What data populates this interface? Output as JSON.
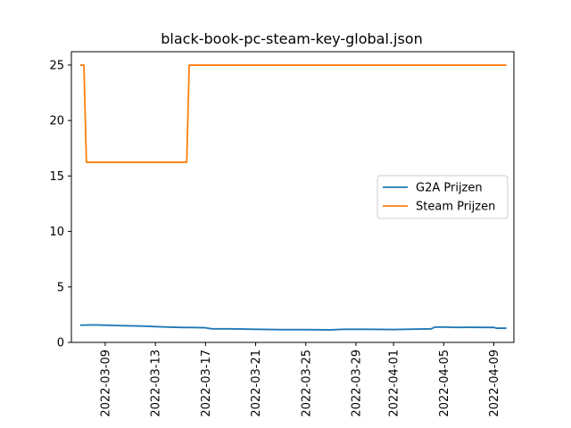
{
  "chart_data": {
    "type": "line",
    "title": "black-book-pc-steam-key-global.json",
    "xlabel": "",
    "ylabel": "",
    "ylim": [
      0,
      26.2
    ],
    "xlim": [
      "2022-03-06",
      "2022-04-10"
    ],
    "y_ticks": [
      0,
      5,
      10,
      15,
      20,
      25
    ],
    "x_ticks": [
      "2022-03-09",
      "2022-03-13",
      "2022-03-17",
      "2022-03-21",
      "2022-03-25",
      "2022-03-29",
      "2022-04-01",
      "2022-04-05",
      "2022-04-09"
    ],
    "grid": false,
    "legend_position": "center-right",
    "series": [
      {
        "name": "G2A Prijzen",
        "color": "#1f77b4",
        "points": [
          [
            "2022-03-07",
            1.55
          ],
          [
            "2022-03-08",
            1.58
          ],
          [
            "2022-03-09",
            1.55
          ],
          [
            "2022-03-10",
            1.52
          ],
          [
            "2022-03-11",
            1.49
          ],
          [
            "2022-03-12",
            1.47
          ],
          [
            "2022-03-13",
            1.42
          ],
          [
            "2022-03-14",
            1.38
          ],
          [
            "2022-03-15",
            1.35
          ],
          [
            "2022-03-16",
            1.34
          ],
          [
            "2022-03-17",
            1.32
          ],
          [
            "2022-03-17.5",
            1.22
          ],
          [
            "2022-03-19",
            1.22
          ],
          [
            "2022-03-21",
            1.18
          ],
          [
            "2022-03-23",
            1.15
          ],
          [
            "2022-03-25",
            1.15
          ],
          [
            "2022-03-27",
            1.13
          ],
          [
            "2022-03-28",
            1.18
          ],
          [
            "2022-03-30",
            1.18
          ],
          [
            "2022-04-01",
            1.16
          ],
          [
            "2022-04-03",
            1.2
          ],
          [
            "2022-04-04",
            1.22
          ],
          [
            "2022-04-04.3",
            1.38
          ],
          [
            "2022-04-05",
            1.38
          ],
          [
            "2022-04-06",
            1.35
          ],
          [
            "2022-04-07",
            1.36
          ],
          [
            "2022-04-08",
            1.35
          ],
          [
            "2022-04-09",
            1.35
          ],
          [
            "2022-04-09.2",
            1.28
          ],
          [
            "2022-04-10",
            1.28
          ]
        ]
      },
      {
        "name": "Steam Prijzen",
        "color": "#ff7f0e",
        "points": [
          [
            "2022-03-07",
            24.99
          ],
          [
            "2022-03-07.3",
            24.99
          ],
          [
            "2022-03-07.5",
            16.24
          ],
          [
            "2022-03-15.5",
            16.24
          ],
          [
            "2022-03-15.7",
            24.99
          ],
          [
            "2022-04-10",
            24.99
          ]
        ]
      }
    ]
  }
}
